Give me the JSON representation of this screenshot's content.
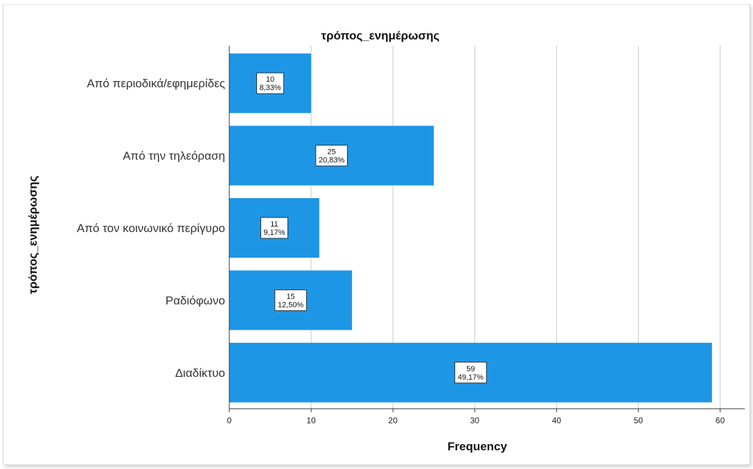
{
  "chart_data": {
    "type": "bar",
    "orientation": "horizontal",
    "title": "τρόπος_ενημέρωσης",
    "xlabel": "Frequency",
    "ylabel": "τρόπος_ενημέρωσης",
    "categories": [
      "Από περιοδικά/εφημερίδες",
      "Από την τηλεόραση",
      "Από τον κοινωνικό περίγυρο",
      "Ραδιόφωνο",
      "Διαδίκτυο"
    ],
    "values": [
      10,
      25,
      11,
      15,
      59
    ],
    "data_labels": [
      {
        "count": "10",
        "percent": "8,33%"
      },
      {
        "count": "25",
        "percent": "20,83%"
      },
      {
        "count": "11",
        "percent": "9,17%"
      },
      {
        "count": "15",
        "percent": "12,50%"
      },
      {
        "count": "59",
        "percent": "49,17%"
      }
    ],
    "xlim": [
      0,
      62
    ],
    "xticks": [
      0,
      10,
      20,
      30,
      40,
      50,
      60
    ],
    "grid": "vertical",
    "legend": "none",
    "bar_color": "#1e96e6"
  }
}
